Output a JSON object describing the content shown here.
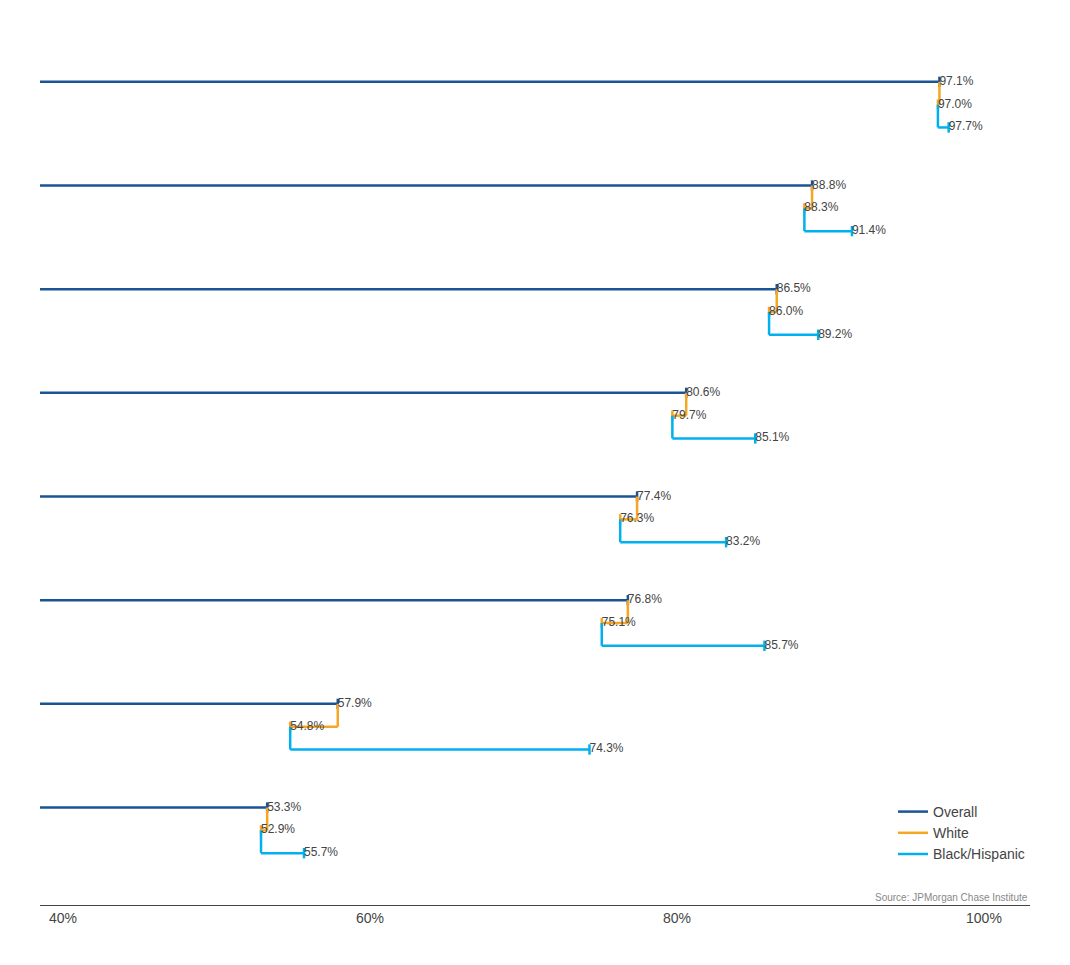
{
  "chart_data": {
    "type": "line",
    "orientation": "horizontal",
    "categories": [
      null,
      null,
      null,
      null,
      null,
      null,
      null,
      null
    ],
    "series": [
      {
        "name": "Overall",
        "color": "#1a5494",
        "values": [
          97.1,
          88.8,
          86.5,
          80.6,
          77.4,
          76.8,
          57.9,
          53.3
        ],
        "value_labels": [
          "97.1%",
          "88.8%",
          "86.5%",
          "80.6%",
          "77.4%",
          "76.8%",
          "57.9%",
          "53.3%"
        ]
      },
      {
        "name": "White",
        "color": "#f5a623",
        "values": [
          97.0,
          88.3,
          86.0,
          79.7,
          76.3,
          75.1,
          54.8,
          52.9
        ],
        "value_labels": [
          "97.0%",
          "88.3%",
          "86.0%",
          "79.7%",
          "76.3%",
          "75.1%",
          "54.8%",
          "52.9%"
        ]
      },
      {
        "name": "Black/Hispanic",
        "color": "#00b0f0",
        "values": [
          97.7,
          91.4,
          89.2,
          85.1,
          83.2,
          85.7,
          74.3,
          55.7
        ],
        "value_labels": [
          "97.7%",
          "91.4%",
          "89.2%",
          "85.1%",
          "83.2%",
          "85.7%",
          "74.3%",
          "55.7%"
        ]
      }
    ],
    "xlim": [
      38.5,
      103
    ],
    "xticks": [
      {
        "value": 40,
        "label": "40%"
      },
      {
        "value": 60,
        "label": "60%"
      },
      {
        "value": 80,
        "label": "80%"
      },
      {
        "value": 100,
        "label": "100%"
      }
    ],
    "grid": false,
    "legend": "lower right",
    "data_labels": true,
    "tick_labels": "x",
    "annotation": "Source: JPMorgan Chase Institute"
  }
}
